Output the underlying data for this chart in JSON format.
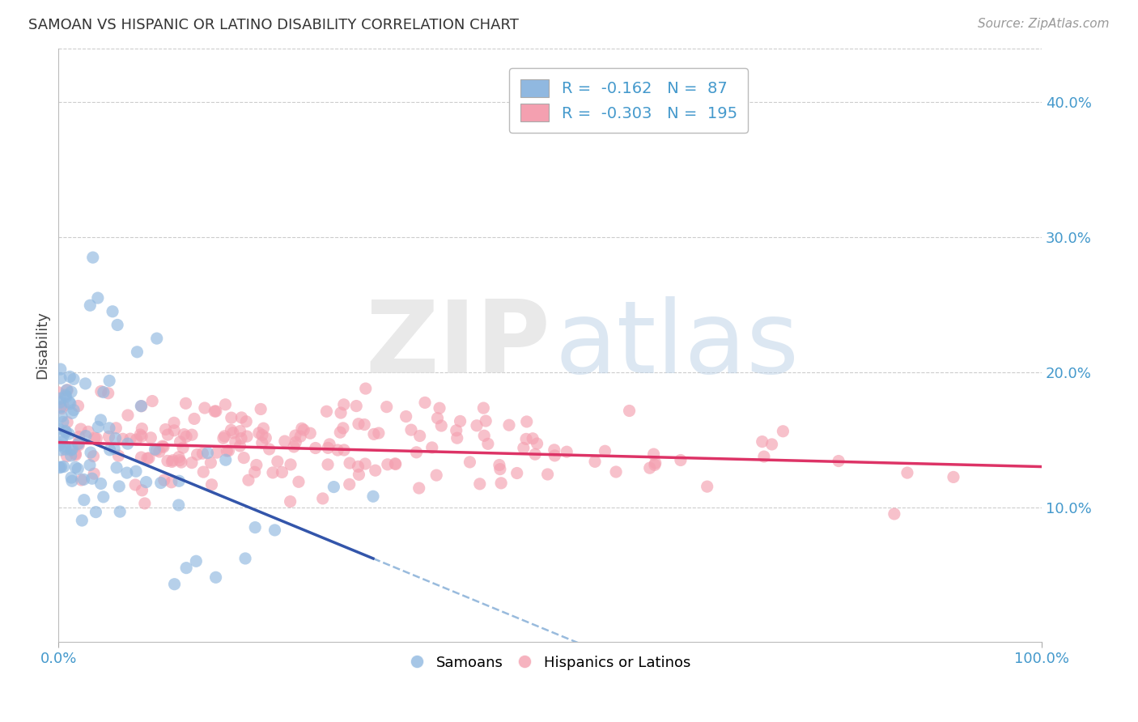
{
  "title": "SAMOAN VS HISPANIC OR LATINO DISABILITY CORRELATION CHART",
  "source": "Source: ZipAtlas.com",
  "ylabel": "Disability",
  "ytick_labels": [
    "10.0%",
    "20.0%",
    "30.0%",
    "40.0%"
  ],
  "ytick_values": [
    0.1,
    0.2,
    0.3,
    0.4
  ],
  "xlim": [
    0.0,
    1.0
  ],
  "ylim": [
    0.0,
    0.44
  ],
  "legend_r_blue": "-0.162",
  "legend_n_blue": "87",
  "legend_r_pink": "-0.303",
  "legend_n_pink": "195",
  "blue_color": "#90b8e0",
  "pink_color": "#f4a0b0",
  "trend_blue_solid": "#3355aa",
  "trend_blue_dashed": "#99bbdd",
  "trend_pink": "#dd3366",
  "background_color": "#ffffff",
  "grid_color": "#cccccc",
  "title_color": "#333333",
  "axis_label_color": "#444444",
  "tick_color": "#4499cc",
  "source_color": "#999999",
  "seed": 42,
  "n_blue": 87,
  "n_pink": 195,
  "blue_intercept": 0.158,
  "blue_slope": -0.3,
  "pink_intercept": 0.148,
  "pink_slope": -0.018
}
